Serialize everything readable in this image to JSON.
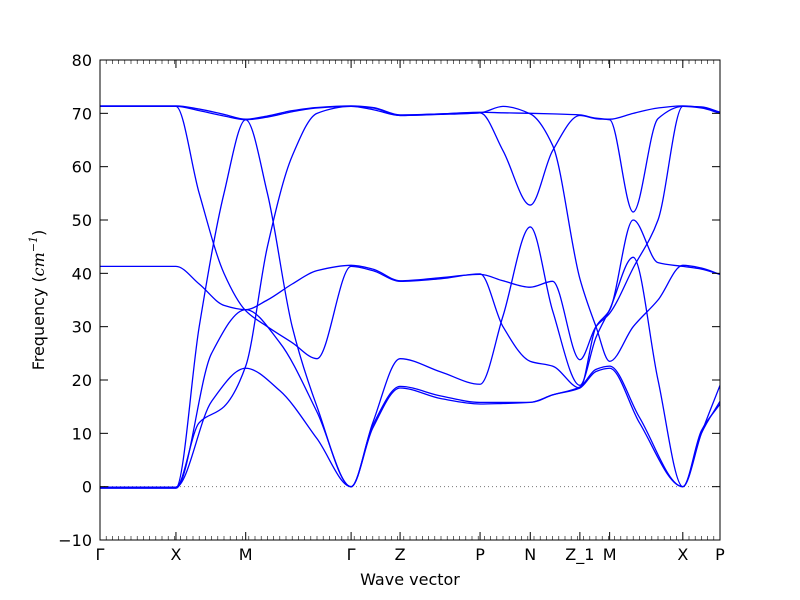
{
  "chart_data": {
    "type": "line",
    "xlabel": "Wave vector",
    "ylabel": "Frequency",
    "ylabel_unit": "cm",
    "ylabel_unit_exponent": "−1",
    "ylim": [
      -10,
      80
    ],
    "yticks": [
      -10,
      0,
      10,
      20,
      30,
      40,
      50,
      60,
      70,
      80
    ],
    "xlim": [
      0,
      100
    ],
    "high_symmetry_points": [
      {
        "label": "Γ",
        "x": 0
      },
      {
        "label": "X",
        "x": 12.25
      },
      {
        "label": "M",
        "x": 23.5
      },
      {
        "label": "Γ",
        "x": 40.5
      },
      {
        "label": "Z",
        "x": 48.4
      },
      {
        "label": "P",
        "x": 61.3
      },
      {
        "label": "N",
        "x": 69.4
      },
      {
        "label": "Z_1",
        "x": 77.4
      },
      {
        "label": "M",
        "x": 82.2
      },
      {
        "label": "X",
        "x": 94.0
      },
      {
        "label": "P",
        "x": 100
      }
    ],
    "zero_line": true,
    "line_color": "#0000ff",
    "series": [
      {
        "x": [
          0,
          12.25,
          18,
          23.5,
          29,
          35,
          40.5,
          44,
          48.4,
          55,
          61.3,
          65,
          69.4,
          73,
          77.4,
          80,
          82.2,
          87,
          94,
          97,
          100
        ],
        "values": [
          -0.1,
          -0.1,
          16,
          22.2,
          18,
          9,
          0,
          11,
          18.5,
          16.5,
          15.5,
          15.6,
          15.8,
          17.2,
          18.5,
          21.6,
          22.2,
          12,
          0,
          10,
          16
        ]
      },
      {
        "x": [
          0,
          12.25,
          18,
          23.5,
          29,
          35,
          40.5,
          44,
          48.4,
          55,
          61.3,
          65,
          69.4,
          73,
          77.4,
          80,
          82.2,
          87,
          94,
          97,
          100
        ],
        "values": [
          -0.3,
          -0.3,
          25,
          33.2,
          27,
          14,
          0,
          11.5,
          18.8,
          17,
          15.8,
          15.8,
          15.8,
          17.2,
          18.7,
          22,
          22.6,
          13,
          0,
          10.5,
          15.5
        ]
      },
      {
        "x": [
          0,
          12.25,
          16,
          20,
          23.5,
          27,
          31,
          35,
          40.5,
          44,
          48.4,
          55,
          61.3,
          65,
          69.4,
          73,
          77.4,
          80,
          82.2,
          86,
          90,
          94,
          97,
          100
        ],
        "values": [
          -0.2,
          -0.2,
          30,
          55,
          68.8,
          55,
          30,
          15,
          0,
          12,
          24,
          21.5,
          19.2,
          32,
          48.7,
          33,
          19,
          28,
          33.2,
          43,
          20,
          0,
          10,
          19
        ]
      },
      {
        "x": [
          0,
          12.25,
          16,
          20,
          23.5,
          27,
          31,
          35,
          40.5,
          44,
          48.4,
          55,
          61.3,
          65,
          69.4,
          73,
          77.4,
          80,
          82.2,
          86,
          90,
          94,
          97,
          100
        ],
        "values": [
          -0.1,
          -0.1,
          12,
          15,
          22.6,
          45,
          62,
          70,
          71.3,
          70.7,
          69.6,
          69.8,
          70.1,
          71.3,
          69.9,
          64,
          39,
          30,
          23.5,
          30,
          35,
          41.5,
          41,
          39.8
        ]
      },
      {
        "x": [
          0,
          12.25,
          16,
          20,
          23.5,
          27,
          31,
          35,
          40.5,
          44,
          48.4,
          55,
          61.3,
          65,
          69.4,
          73,
          77.4,
          80,
          82.2,
          86,
          90,
          94,
          97,
          100
        ],
        "values": [
          41.3,
          41.3,
          38,
          34,
          33.2,
          35,
          38,
          40.5,
          41.5,
          40.8,
          38.6,
          39.2,
          39.8,
          38.6,
          37.4,
          38.5,
          23.8,
          30,
          32.5,
          41,
          50,
          71.3,
          71.2,
          70.2
        ]
      },
      {
        "x": [
          0,
          12.25,
          16,
          20,
          23.5,
          27,
          31,
          35,
          40.5,
          44,
          48.4,
          55,
          61.3,
          65,
          69.4,
          73,
          77.4,
          80,
          82.2,
          86,
          90,
          94,
          97,
          100
        ],
        "values": [
          71.3,
          71.3,
          55,
          40,
          33.0,
          30,
          27,
          24,
          41.3,
          40.5,
          38.5,
          39.0,
          39.9,
          30,
          23.5,
          22.6,
          18.5,
          30,
          33.1,
          50,
          42,
          41.3,
          40.8,
          39.8
        ]
      },
      {
        "x": [
          0,
          12.25,
          16,
          20,
          23.5,
          27,
          31,
          35,
          40.5,
          44,
          48.4,
          55,
          61.3,
          65,
          69.4,
          73,
          77.4,
          80,
          82.2,
          86,
          90,
          94,
          97,
          100
        ],
        "values": [
          71.3,
          71.3,
          70.5,
          69.5,
          68.8,
          69.3,
          70.3,
          71.0,
          71.3,
          71.0,
          69.6,
          69.9,
          70.1,
          63,
          52.8,
          63,
          69.6,
          69,
          68.8,
          51.5,
          69,
          71.3,
          71.0,
          70.0
        ]
      },
      {
        "x": [
          0,
          12.25,
          16,
          20,
          23.5,
          27,
          31,
          35,
          40.5,
          44,
          48.4,
          55,
          61.3,
          65,
          69.4,
          73,
          77.4,
          80,
          82.2,
          86,
          90,
          94,
          97,
          100
        ],
        "values": [
          71.4,
          71.4,
          70.8,
          69.8,
          68.9,
          69.5,
          70.5,
          71.1,
          71.4,
          71.1,
          69.7,
          69.9,
          70.2,
          70.1,
          70.0,
          69.9,
          69.7,
          69.1,
          68.9,
          70,
          71,
          71.4,
          71.1,
          70.2
        ]
      }
    ]
  }
}
